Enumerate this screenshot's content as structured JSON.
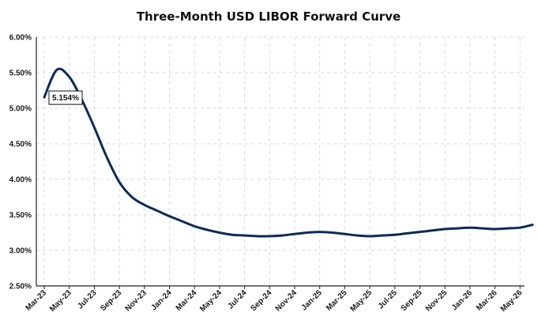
{
  "chart_data": {
    "type": "line",
    "title": "Three-Month USD LIBOR Forward Curve",
    "xlabel": "",
    "ylabel": "",
    "ylim": [
      2.5,
      6.0
    ],
    "y_ticks": [
      "2.50%",
      "3.00%",
      "3.50%",
      "4.00%",
      "4.50%",
      "5.00%",
      "5.50%",
      "6.00%"
    ],
    "y_tick_values": [
      2.5,
      3.0,
      3.5,
      4.0,
      4.5,
      5.0,
      5.5,
      6.0
    ],
    "x_ticks": [
      "Mar-23",
      "May-23",
      "Jul-23",
      "Sep-23",
      "Nov-23",
      "Jan-24",
      "Mar-24",
      "May-24",
      "Jul-24",
      "Sep-24",
      "Nov-24",
      "Jan-25",
      "Mar-25",
      "May-25",
      "Jul-25",
      "Sep-25",
      "Nov-25",
      "Jan-26",
      "Mar-26",
      "May-26"
    ],
    "grid": true,
    "x": [
      "Mar-23",
      "Apr-23",
      "May-23",
      "Jun-23",
      "Jul-23",
      "Aug-23",
      "Sep-23",
      "Oct-23",
      "Nov-23",
      "Dec-23",
      "Jan-24",
      "Feb-24",
      "Mar-24",
      "Apr-24",
      "May-24",
      "Jun-24",
      "Jul-24",
      "Aug-24",
      "Sep-24",
      "Oct-24",
      "Nov-24",
      "Dec-24",
      "Jan-25",
      "Feb-25",
      "Mar-25",
      "Apr-25",
      "May-25",
      "Jun-25",
      "Jul-25",
      "Aug-25",
      "Sep-25",
      "Oct-25",
      "Nov-25",
      "Dec-25",
      "Jan-26",
      "Feb-26",
      "Mar-26",
      "Apr-26",
      "May-26",
      "Jun-26"
    ],
    "series": [
      {
        "values": [
          5.154,
          5.54,
          5.44,
          5.12,
          4.73,
          4.31,
          3.96,
          3.75,
          3.64,
          3.56,
          3.48,
          3.41,
          3.34,
          3.29,
          3.25,
          3.22,
          3.21,
          3.2,
          3.2,
          3.21,
          3.23,
          3.25,
          3.26,
          3.25,
          3.23,
          3.21,
          3.2,
          3.21,
          3.22,
          3.24,
          3.26,
          3.28,
          3.3,
          3.31,
          3.32,
          3.31,
          3.3,
          3.31,
          3.32,
          3.36
        ],
        "color": "#0b2b57"
      }
    ],
    "annotations": [
      {
        "text": "5.154%",
        "x": "Mar-23",
        "y": 5.154
      }
    ]
  }
}
